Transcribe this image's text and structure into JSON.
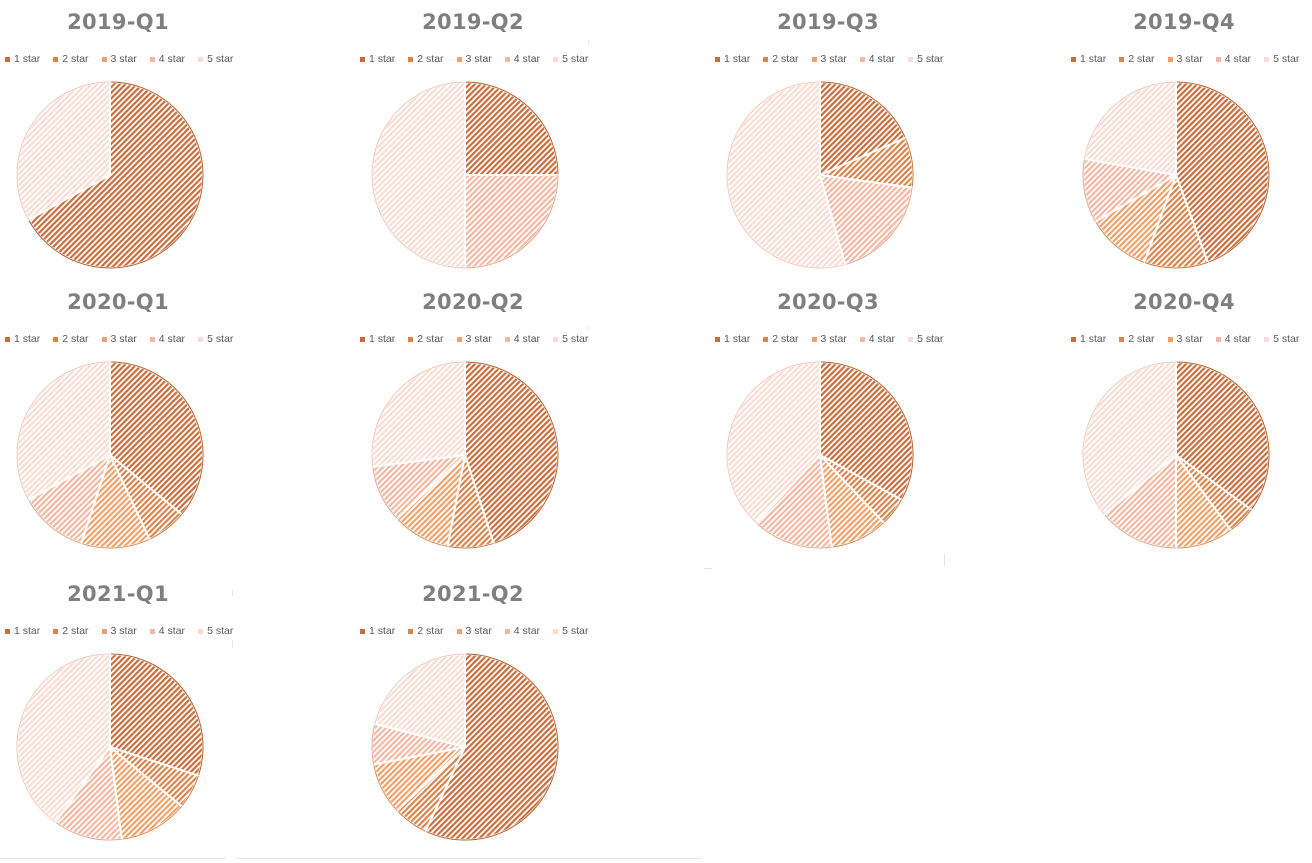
{
  "legend_labels": [
    "1 star",
    "2 star",
    "3 star",
    "4 star",
    "5 star"
  ],
  "colors": [
    "#c96d3c",
    "#d8844c",
    "#f0a068",
    "#f4b8a2",
    "#f9dcd2"
  ],
  "chart_data": [
    {
      "type": "pie",
      "title": "2019-Q1",
      "categories": [
        "1 star",
        "2 star",
        "3 star",
        "4 star",
        "5 star"
      ],
      "values": [
        67,
        0,
        0,
        0,
        33
      ]
    },
    {
      "type": "pie",
      "title": "2019-Q2",
      "categories": [
        "1 star",
        "2 star",
        "3 star",
        "4 star",
        "5 star"
      ],
      "values": [
        25,
        0,
        0,
        25,
        50
      ]
    },
    {
      "type": "pie",
      "title": "2019-Q3",
      "categories": [
        "1 star",
        "2 star",
        "3 star",
        "4 star",
        "5 star"
      ],
      "values": [
        17,
        8,
        0,
        17,
        50
      ]
    },
    {
      "type": "pie",
      "title": "2019-Q4",
      "categories": [
        "1 star",
        "2 star",
        "3 star",
        "4 star",
        "5 star"
      ],
      "values": [
        40,
        10,
        10,
        10,
        20
      ]
    },
    {
      "type": "pie",
      "title": "2020-Q1",
      "categories": [
        "1 star",
        "2 star",
        "3 star",
        "4 star",
        "5 star"
      ],
      "values": [
        36,
        7,
        12,
        12,
        33
      ]
    },
    {
      "type": "pie",
      "title": "2020-Q2",
      "categories": [
        "1 star",
        "2 star",
        "3 star",
        "4 star",
        "5 star"
      ],
      "values": [
        45,
        8,
        10,
        10,
        27
      ]
    },
    {
      "type": "pie",
      "title": "2020-Q3",
      "categories": [
        "1 star",
        "2 star",
        "3 star",
        "4 star",
        "5 star"
      ],
      "values": [
        33,
        5,
        10,
        14,
        38
      ]
    },
    {
      "type": "pie",
      "title": "2020-Q4",
      "categories": [
        "1 star",
        "2 star",
        "3 star",
        "4 star",
        "5 star"
      ],
      "values": [
        35,
        5,
        10,
        14,
        36
      ]
    },
    {
      "type": "pie",
      "title": "2021-Q1",
      "categories": [
        "1 star",
        "2 star",
        "3 star",
        "4 star",
        "5 star"
      ],
      "values": [
        30,
        6,
        12,
        12,
        40
      ]
    },
    {
      "type": "pie",
      "title": "2021-Q2",
      "categories": [
        "1 star",
        "2 star",
        "3 star",
        "4 star",
        "5 star"
      ],
      "values": [
        57,
        6,
        9,
        7,
        21
      ]
    }
  ]
}
